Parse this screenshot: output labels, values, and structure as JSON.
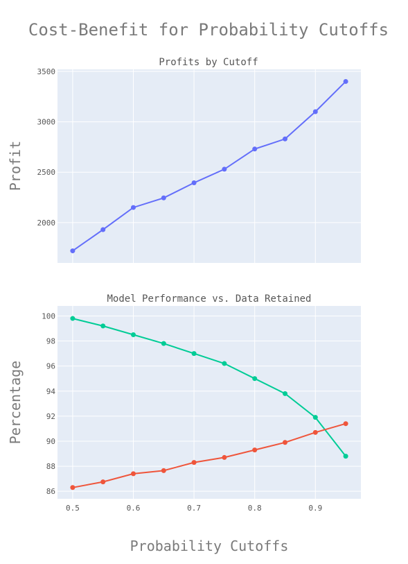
{
  "chart_data": {
    "title": "Cost-Benefit for Probability Cutoffs",
    "xlabel": "Probability Cutoffs",
    "x": [
      0.5,
      0.55,
      0.6,
      0.65,
      0.7,
      0.75,
      0.8,
      0.85,
      0.9,
      0.95
    ],
    "x_ticks": [
      "0.5",
      "0.6",
      "0.7",
      "0.8",
      "0.9"
    ],
    "x_tick_values": [
      0.5,
      0.6,
      0.7,
      0.8,
      0.9
    ],
    "xlim": [
      0.475,
      0.975
    ],
    "subplots": [
      {
        "type": "line",
        "subtitle": "Profits by Cutoff",
        "ylabel": "Profit",
        "ylim": [
          1600,
          3520
        ],
        "y_ticks": [
          "2000",
          "2500",
          "3000",
          "3500"
        ],
        "y_tick_values": [
          2000,
          2500,
          3000,
          3500
        ],
        "series": [
          {
            "color": "#636efa",
            "values": [
              1720,
              1930,
              2150,
              2245,
              2395,
              2530,
              2730,
              2830,
              3100,
              3400
            ]
          }
        ]
      },
      {
        "type": "line",
        "subtitle": "Model Performance vs. Data Retained",
        "ylabel": "Percentage",
        "ylim": [
          85.4,
          100.8
        ],
        "y_ticks": [
          "86",
          "88",
          "90",
          "92",
          "94",
          "96",
          "98",
          "100"
        ],
        "y_tick_values": [
          86,
          88,
          90,
          92,
          94,
          96,
          98,
          100
        ],
        "series": [
          {
            "color": "#00cc96",
            "values": [
              99.8,
              99.2,
              98.5,
              97.8,
              97.0,
              96.2,
              95.0,
              93.8,
              91.9,
              88.8
            ]
          },
          {
            "color": "#ef553b",
            "values": [
              86.3,
              86.75,
              87.4,
              87.65,
              88.3,
              88.7,
              89.3,
              89.9,
              90.7,
              91.4
            ]
          }
        ]
      }
    ],
    "grid": true,
    "plot_bgcolor": "#e5ecf6"
  }
}
